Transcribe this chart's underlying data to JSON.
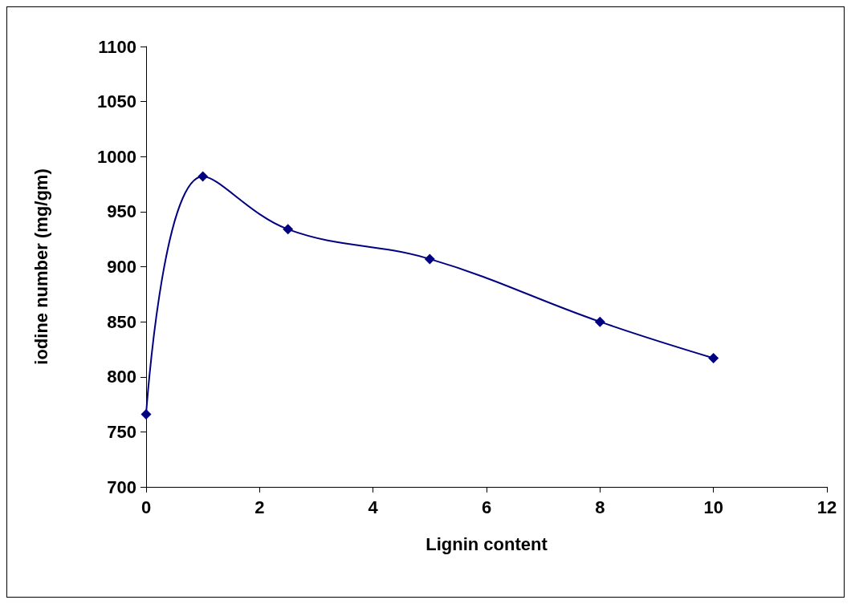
{
  "chart_data": {
    "type": "line",
    "xlabel": "Lignin content",
    "ylabel": "iodine number (mg/gm)",
    "x": [
      0,
      1,
      2.5,
      5,
      8,
      10
    ],
    "series": [
      {
        "color": "#000080",
        "values": [
          766,
          982,
          934,
          907,
          850,
          817
        ]
      }
    ],
    "xlim": [
      0,
      12
    ],
    "xticks": [
      0,
      2,
      4,
      6,
      8,
      10,
      12
    ],
    "ylim": [
      700,
      1100
    ],
    "yticks": [
      700,
      750,
      800,
      850,
      900,
      950,
      1000,
      1050,
      1100
    ],
    "grid": false,
    "marker": "diamond",
    "line_style": "solid"
  }
}
